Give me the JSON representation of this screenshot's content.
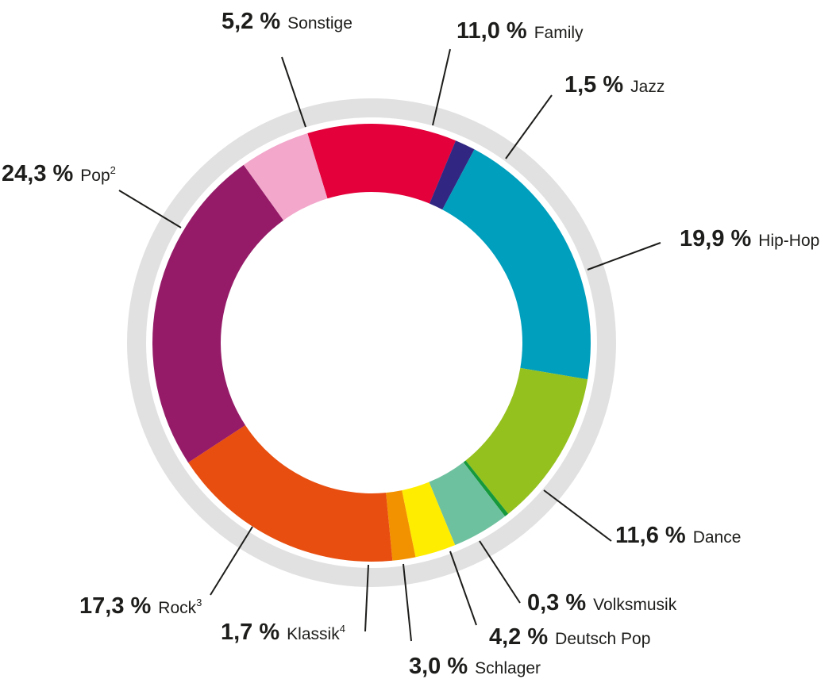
{
  "chart_data": {
    "type": "pie",
    "variant": "donut",
    "unit": "%",
    "ring_color": "#e1e1e1",
    "start_angle_deg": -17,
    "direction": "clockwise",
    "slices": [
      {
        "key": "family",
        "value_text": "11,0 %",
        "label": "Family",
        "sup": "",
        "value": 11.0,
        "color": "#e4003a"
      },
      {
        "key": "jazz",
        "value_text": "1,5 %",
        "label": "Jazz",
        "sup": "",
        "value": 1.5,
        "color": "#312783"
      },
      {
        "key": "hiphop",
        "value_text": "19,9 %",
        "label": "Hip-Hop",
        "sup": "",
        "value": 19.9,
        "color": "#009fbd"
      },
      {
        "key": "dance",
        "value_text": "11,6 %",
        "label": "Dance",
        "sup": "",
        "value": 11.6,
        "color": "#95c11f"
      },
      {
        "key": "volksmusik",
        "value_text": "0,3 %",
        "label": "Volksmusik",
        "sup": "",
        "value": 0.3,
        "color": "#15993c"
      },
      {
        "key": "deutschpop",
        "value_text": "4,2 %",
        "label": "Deutsch Pop",
        "sup": "",
        "value": 4.2,
        "color": "#6ec19f"
      },
      {
        "key": "schlager",
        "value_text": "3,0 %",
        "label": "Schlager",
        "sup": "",
        "value": 3.0,
        "color": "#ffed00"
      },
      {
        "key": "klassik",
        "value_text": "1,7 %",
        "label": "Klassik",
        "sup": "4",
        "value": 1.7,
        "color": "#f39200"
      },
      {
        "key": "rock",
        "value_text": "17,3 %",
        "label": "Rock",
        "sup": "3",
        "value": 17.3,
        "color": "#e84e0f"
      },
      {
        "key": "pop",
        "value_text": "24,3 %",
        "label": "Pop",
        "sup": "2",
        "value": 24.3,
        "color": "#951b68"
      },
      {
        "key": "sonstige",
        "value_text": "5,2 %",
        "label": "Sonstige",
        "sup": "",
        "value": 5.2,
        "color": "#f2a7cb"
      }
    ]
  }
}
